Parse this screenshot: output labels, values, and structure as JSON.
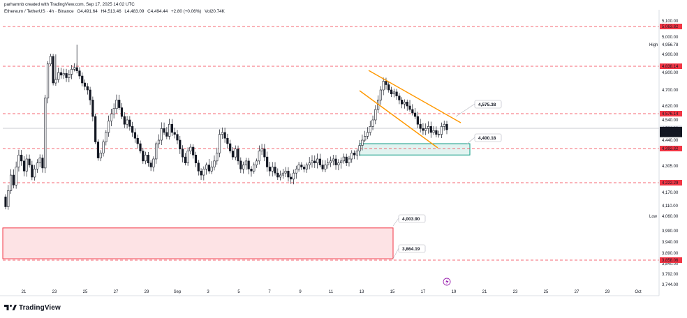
{
  "header": {
    "author": "parhamnb created with TradingView.com, Sep 17, 2025 14:02 UTC",
    "symbol": "Ethereum / TetherUS · 4h · Binance",
    "open": "O4,491.64",
    "high": "H4,513.46",
    "low": "L4,483.09",
    "close": "C4,494.44",
    "change": "+2.80 (+0.06%)",
    "volume": "Vol20.74K"
  },
  "footer": {
    "brand": "TradingView"
  },
  "colors": {
    "up": "#131722",
    "down": "#131722",
    "level_line": "#f23645",
    "channel": "#ff9800",
    "demand_zone": "#089981",
    "supply_zone": "#f23645",
    "price_line": "#9598a1"
  },
  "chart_data": {
    "type": "candlestick",
    "symbol": "ETHUSDT",
    "timeframe": "4h",
    "ylim": [
      3744,
      5100
    ],
    "y_axis_ticks": [
      "5,100.00",
      "4,900.00",
      "4,800.00",
      "4,700.00",
      "4,620.00",
      "4,540.00",
      "4,440.00",
      "4,305.00",
      "4,170.00",
      "4,110.00",
      "3,990.00",
      "3,940.00",
      "3,890.00",
      "3,840.00",
      "3,792.00",
      "3,744.00"
    ],
    "x_axis_ticks": [
      "21",
      "23",
      "25",
      "27",
      "29",
      "Sep",
      "3",
      "5",
      "7",
      "9",
      "11",
      "13",
      "15",
      "17",
      "19",
      "21",
      "23",
      "25",
      "27",
      "29",
      "Oct"
    ],
    "price_tags": [
      {
        "label": "5,063.82",
        "value": 5063.82,
        "style": "red"
      },
      {
        "label": "5,000.00",
        "value": 5000,
        "style": "plain"
      },
      {
        "label": "4,956.78",
        "value": 4956.78,
        "style": "plain",
        "prefix": "High"
      },
      {
        "label": "4,838.14",
        "value": 4838.14,
        "style": "red"
      },
      {
        "label": "4,576.14",
        "value": 4576.14,
        "style": "red"
      },
      {
        "label": "4,501.29",
        "value": 4501.29,
        "style": "light"
      },
      {
        "label": "4,494.44",
        "value": 4494.44,
        "style": "dark"
      },
      {
        "label": "01:57:24",
        "value": 4470,
        "style": "dark"
      },
      {
        "label": "4,392.32",
        "value": 4392.32,
        "style": "red"
      },
      {
        "label": "4,222.29",
        "value": 4222.29,
        "style": "red"
      },
      {
        "label": "4,060.00",
        "value": 4060,
        "style": "plain",
        "prefix": "Low"
      },
      {
        "label": "3,858.06",
        "value": 3858.06,
        "style": "red"
      }
    ],
    "horizontal_levels": [
      5063.82,
      4838.14,
      4576.14,
      4392.32,
      4222.29,
      3858.06
    ],
    "zones": [
      {
        "kind": "demand",
        "top": 4420,
        "bottom": 4360,
        "start": "Sep 11",
        "end": "Sep 18"
      },
      {
        "kind": "supply",
        "top": 4003.9,
        "bottom": 3864.19,
        "start": "Aug 19",
        "end": "Sep 13"
      }
    ],
    "callouts": [
      {
        "label": "4,575.38",
        "value": 4575.38
      },
      {
        "label": "4,400.18",
        "value": 4400.18
      },
      {
        "label": "4,003.90",
        "value": 4003.9
      },
      {
        "label": "3,864.19",
        "value": 3864.19
      }
    ],
    "channel": {
      "upper": [
        [
          "Sep 12 16:00",
          4850
        ],
        [
          "Sep 17 12:00",
          4535
        ]
      ],
      "lower": [
        [
          "Sep 12 00:00",
          4710
        ],
        [
          "Sep 16 00:00",
          4385
        ]
      ]
    },
    "candles_close": [
      4105,
      4180,
      4260,
      4210,
      4300,
      4360,
      4330,
      4280,
      4340,
      4310,
      4250,
      4290,
      4320,
      4345,
      4295,
      4660,
      4850,
      4890,
      4740,
      4760,
      4800,
      4785,
      4795,
      4770,
      4790,
      4820,
      4830,
      4810,
      4780,
      4740,
      4720,
      4700,
      4650,
      4560,
      4430,
      4345,
      4370,
      4430,
      4480,
      4535,
      4575,
      4605,
      4650,
      4610,
      4560,
      4520,
      4540,
      4510,
      4480,
      4450,
      4420,
      4380,
      4330,
      4360,
      4320,
      4300,
      4340,
      4420,
      4440,
      4500,
      4480,
      4460,
      4520,
      4480,
      4470,
      4440,
      4390,
      4350,
      4320,
      4380,
      4400,
      4360,
      4320,
      4280,
      4260,
      4290,
      4310,
      4280,
      4300,
      4330,
      4370,
      4470,
      4480,
      4450,
      4420,
      4380,
      4350,
      4390,
      4330,
      4290,
      4310,
      4330,
      4290,
      4280,
      4310,
      4330,
      4380,
      4390,
      4350,
      4300,
      4280,
      4300,
      4270,
      4250,
      4260,
      4270,
      4280,
      4250,
      4240,
      4270,
      4290,
      4310,
      4300,
      4290,
      4310,
      4320,
      4330,
      4320,
      4340,
      4310,
      4290,
      4310,
      4320,
      4330,
      4340,
      4310,
      4320,
      4330,
      4350,
      4320,
      4340,
      4370,
      4360,
      4380,
      4410,
      4440,
      4460,
      4480,
      4510,
      4540,
      4600,
      4650,
      4700,
      4750,
      4730,
      4700,
      4680,
      4690,
      4670,
      4650,
      4630,
      4640,
      4620,
      4600,
      4580,
      4560,
      4520,
      4500,
      4490,
      4500,
      4510,
      4480,
      4490,
      4470,
      4470,
      4510,
      4520,
      4494
    ]
  }
}
